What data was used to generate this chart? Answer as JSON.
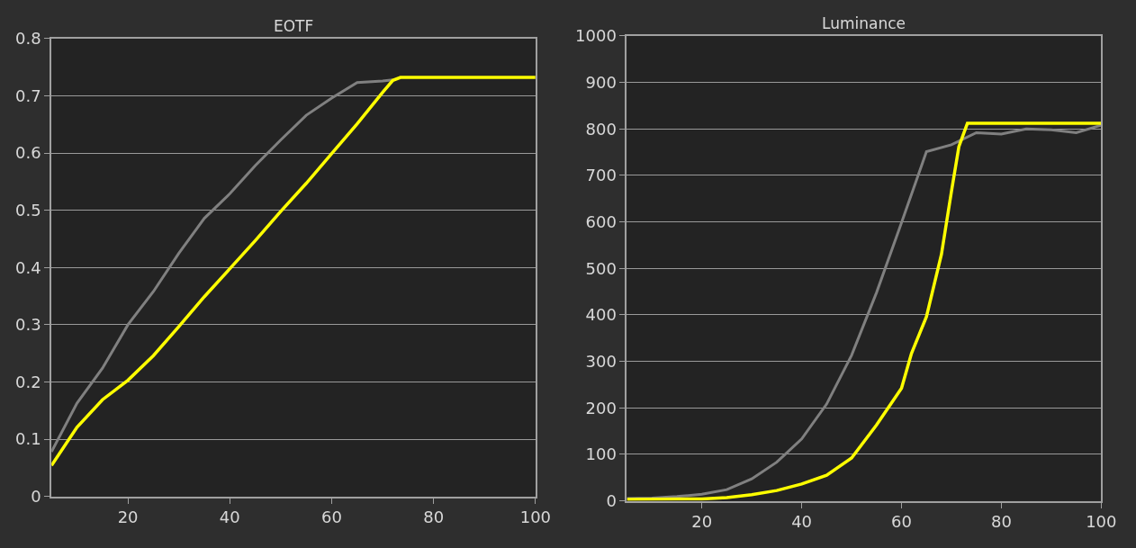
{
  "chart_data": [
    {
      "type": "line",
      "title": "EOTF",
      "xlim": [
        5,
        100
      ],
      "xticks": [
        20,
        40,
        60,
        80,
        100
      ],
      "ylim": [
        0,
        0.8
      ],
      "yticks": [
        0,
        0.1,
        0.2,
        0.3,
        0.4,
        0.5,
        0.6,
        0.7,
        0.8
      ],
      "grid": "y",
      "series": [
        {
          "color": "#808080",
          "x": [
            5,
            10,
            15,
            20,
            25,
            30,
            35,
            40,
            45,
            50,
            55,
            60,
            65,
            70,
            72
          ],
          "values": [
            0.078,
            0.163,
            0.224,
            0.3,
            0.358,
            0.425,
            0.486,
            0.529,
            0.578,
            0.623,
            0.666,
            0.696,
            0.723,
            0.726,
            0.728
          ]
        },
        {
          "color": "#ffff00",
          "x": [
            5,
            10,
            15,
            20,
            25,
            30,
            35,
            40,
            45,
            50,
            55,
            60,
            65,
            70,
            72,
            73.5,
            80,
            90,
            100
          ],
          "values": [
            0.054,
            0.121,
            0.169,
            0.203,
            0.246,
            0.297,
            0.349,
            0.398,
            0.447,
            0.498,
            0.547,
            0.599,
            0.651,
            0.706,
            0.727,
            0.732,
            0.732,
            0.732,
            0.732
          ]
        }
      ]
    },
    {
      "type": "line",
      "title": "Luminance",
      "xlim": [
        5,
        100
      ],
      "xticks": [
        20,
        40,
        60,
        80,
        100
      ],
      "ylim": [
        0,
        1000
      ],
      "yticks": [
        0,
        100,
        200,
        300,
        400,
        500,
        600,
        700,
        800,
        900,
        1000
      ],
      "grid": "y",
      "series": [
        {
          "color": "#808080",
          "x": [
            5,
            10,
            15,
            20,
            25,
            30,
            35,
            40,
            45,
            50,
            55,
            60,
            65,
            70,
            75,
            80,
            85,
            90,
            95,
            100
          ],
          "values": [
            5,
            6,
            9,
            14,
            24,
            47,
            83,
            133,
            208,
            313,
            448,
            598,
            751,
            766,
            792,
            789,
            800,
            798,
            792,
            808
          ]
        },
        {
          "color": "#ffff00",
          "x": [
            5,
            20,
            25,
            30,
            35,
            40,
            45,
            50,
            55,
            60,
            62,
            65,
            68,
            70,
            71.5,
            73.2,
            80,
            90,
            100
          ],
          "values": [
            3,
            4,
            7,
            13,
            22,
            36,
            55,
            92,
            163,
            242,
            317,
            396,
            530,
            665,
            762,
            812,
            812,
            812,
            812
          ]
        }
      ]
    }
  ]
}
